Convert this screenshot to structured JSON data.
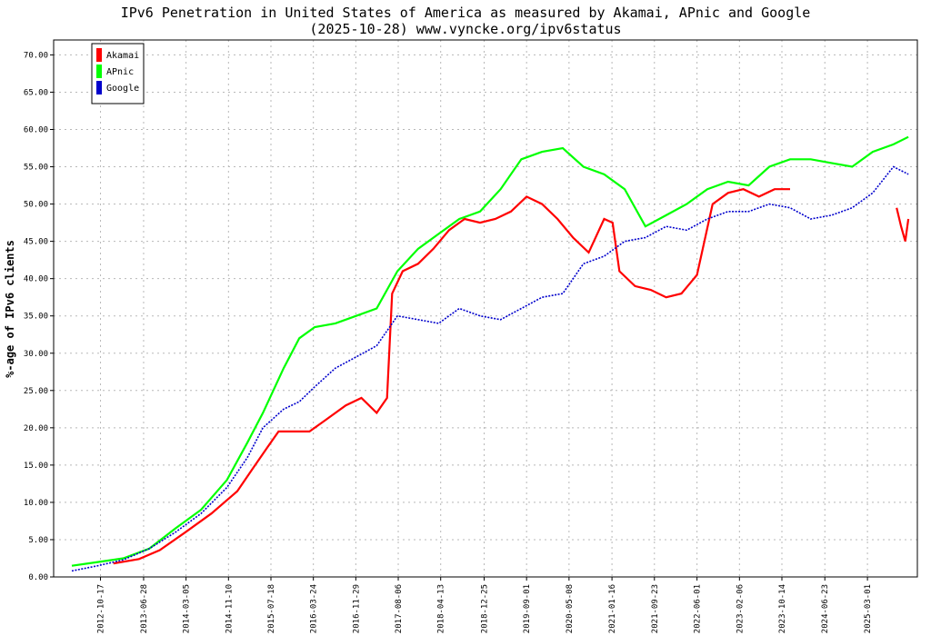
{
  "chart_data": {
    "type": "line",
    "title": "IPv6 Penetration in United States of America as measured by Akamai, APnic and Google",
    "subtitle": "(2025-10-28) www.vyncke.org/ipv6status",
    "xlabel": "",
    "ylabel": "%-age of IPv6 clients",
    "ylim": [
      0,
      72
    ],
    "xlim": [
      "2012-01-15",
      "2025-12-20"
    ],
    "y_ticks": [
      "0.00",
      "5.00",
      "10.00",
      "15.00",
      "20.00",
      "25.00",
      "30.00",
      "35.00",
      "40.00",
      "45.00",
      "50.00",
      "55.00",
      "60.00",
      "65.00",
      "70.00"
    ],
    "x_ticks": [
      "2012-10-17",
      "2013-06-28",
      "2014-03-05",
      "2014-11-10",
      "2015-07-18",
      "2016-03-24",
      "2016-11-29",
      "2017-08-06",
      "2018-04-13",
      "2018-12-25",
      "2019-09-01",
      "2020-05-08",
      "2021-01-16",
      "2021-09-23",
      "2022-06-01",
      "2023-02-06",
      "2023-10-14",
      "2024-06-23",
      "2025-03-01"
    ],
    "grid": true,
    "legend_position": "top-left",
    "series": [
      {
        "name": "Akamai",
        "color": "#ff0000",
        "x": [
          "2013-01-01",
          "2013-06-01",
          "2013-10-01",
          "2014-03-01",
          "2014-08-01",
          "2015-01-01",
          "2015-04-01",
          "2015-07-01",
          "2015-09-01",
          "2015-12-01",
          "2016-03-01",
          "2016-06-01",
          "2016-10-01",
          "2017-01-01",
          "2017-04-01",
          "2017-06-01",
          "2017-07-01",
          "2017-09-01",
          "2017-12-01",
          "2018-03-01",
          "2018-06-01",
          "2018-09-01",
          "2018-12-01",
          "2019-03-01",
          "2019-06-01",
          "2019-09-01",
          "2019-12-01",
          "2020-03-01",
          "2020-06-01",
          "2020-09-01",
          "2020-12-01",
          "2021-01-20",
          "2021-03-01",
          "2021-06-01",
          "2021-09-01",
          "2021-12-01",
          "2022-03-01",
          "2022-06-01",
          "2022-09-01",
          "2022-12-01",
          "2023-03-01",
          "2023-06-01",
          "2023-09-01",
          "2023-12-01"
        ],
        "values": [
          1.8,
          2.4,
          3.6,
          6.0,
          8.5,
          11.5,
          14.5,
          17.5,
          19.5,
          19.5,
          19.5,
          21.0,
          23.0,
          24.0,
          22.0,
          24.0,
          38.0,
          41.0,
          42.0,
          44.0,
          46.5,
          48.0,
          47.5,
          48.0,
          49.0,
          51.0,
          50.0,
          48.0,
          45.5,
          43.5,
          48.0,
          47.5,
          41.0,
          39.0,
          38.5,
          37.5,
          38.0,
          40.5,
          50.0,
          51.5,
          52.0,
          51.0,
          52.0,
          52.0
        ]
      },
      {
        "name": "Akamai",
        "color": "#ff0000",
        "x": [
          "2025-08-20",
          "2025-09-15",
          "2025-10-10",
          "2025-10-28"
        ],
        "values": [
          49.5,
          47.0,
          45.0,
          48.0
        ]
      },
      {
        "name": "APnic",
        "color": "#00ff00",
        "x": [
          "2012-05-01",
          "2012-10-01",
          "2013-03-01",
          "2013-08-01",
          "2014-01-01",
          "2014-06-01",
          "2014-11-01",
          "2015-03-01",
          "2015-06-01",
          "2015-10-01",
          "2016-01-01",
          "2016-04-01",
          "2016-08-01",
          "2016-12-01",
          "2017-04-01",
          "2017-08-01",
          "2017-12-01",
          "2018-04-01",
          "2018-08-01",
          "2018-12-01",
          "2019-04-01",
          "2019-08-01",
          "2019-12-01",
          "2020-04-01",
          "2020-08-01",
          "2020-12-01",
          "2021-04-01",
          "2021-08-01",
          "2021-12-01",
          "2022-04-01",
          "2022-08-01",
          "2022-12-01",
          "2023-04-01",
          "2023-08-01",
          "2023-12-01",
          "2024-04-01",
          "2024-08-01",
          "2024-12-01",
          "2025-04-01",
          "2025-08-01",
          "2025-10-28"
        ],
        "values": [
          1.5,
          2.0,
          2.5,
          3.8,
          6.5,
          9.0,
          13.0,
          18.0,
          22.0,
          28.0,
          32.0,
          33.5,
          34.0,
          35.0,
          36.0,
          41.0,
          44.0,
          46.0,
          48.0,
          49.0,
          52.0,
          56.0,
          57.0,
          57.5,
          55.0,
          54.0,
          52.0,
          47.0,
          48.5,
          50.0,
          52.0,
          53.0,
          52.5,
          55.0,
          56.0,
          56.0,
          55.5,
          55.0,
          57.0,
          58.0,
          59.0
        ]
      },
      {
        "name": "Google",
        "color": "#0000cc",
        "x": [
          "2012-05-01",
          "2012-10-01",
          "2013-03-01",
          "2013-08-01",
          "2014-01-01",
          "2014-06-01",
          "2014-11-01",
          "2015-03-01",
          "2015-06-01",
          "2015-10-01",
          "2016-01-01",
          "2016-04-01",
          "2016-08-01",
          "2016-12-01",
          "2017-04-01",
          "2017-08-01",
          "2017-12-01",
          "2018-04-01",
          "2018-08-01",
          "2018-12-01",
          "2019-04-01",
          "2019-08-01",
          "2019-12-01",
          "2020-04-01",
          "2020-08-01",
          "2020-12-01",
          "2021-04-01",
          "2021-08-01",
          "2021-12-01",
          "2022-04-01",
          "2022-08-01",
          "2022-12-01",
          "2023-04-01",
          "2023-08-01",
          "2023-12-01",
          "2024-04-01",
          "2024-08-01",
          "2024-12-01",
          "2025-04-01",
          "2025-08-01",
          "2025-10-28"
        ],
        "values": [
          0.8,
          1.5,
          2.3,
          3.8,
          6.0,
          8.5,
          12.0,
          16.0,
          20.0,
          22.5,
          23.5,
          25.5,
          28.0,
          29.5,
          31.0,
          35.0,
          34.5,
          34.0,
          36.0,
          35.0,
          34.5,
          36.0,
          37.5,
          38.0,
          42.0,
          43.0,
          45.0,
          45.5,
          47.0,
          46.5,
          48.0,
          49.0,
          49.0,
          50.0,
          49.5,
          48.0,
          48.5,
          49.5,
          51.5,
          55.0,
          54.0
        ]
      }
    ],
    "legend": [
      "Akamai",
      "APnic",
      "Google"
    ]
  }
}
